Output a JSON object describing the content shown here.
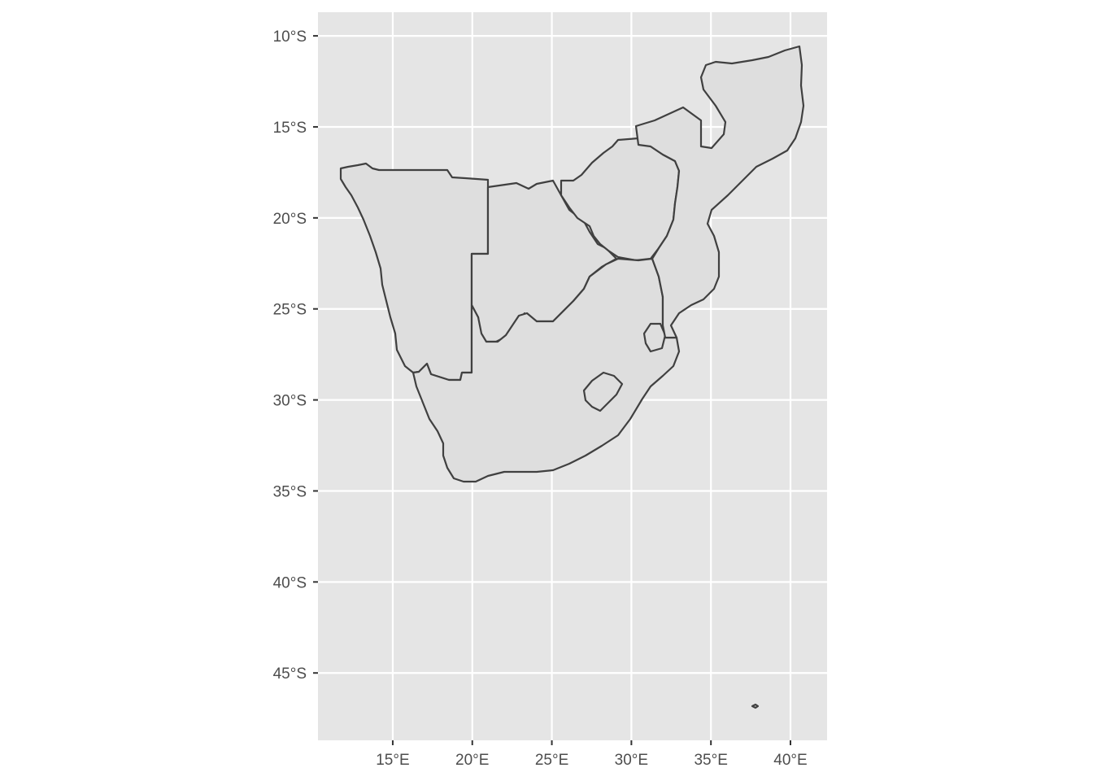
{
  "map": {
    "type": "choropleth-outline",
    "region": "Southern Africa",
    "panel_background": "#e5e5e5",
    "grid_color": "#ffffff",
    "land_fill": "#dedede",
    "border_color": "#404040",
    "grid": true,
    "x_axis": {
      "range": [
        10.3,
        42.3
      ],
      "ticks": [
        {
          "value": 15,
          "label": "15°E"
        },
        {
          "value": 20,
          "label": "20°E"
        },
        {
          "value": 25,
          "label": "25°E"
        },
        {
          "value": 30,
          "label": "30°E"
        },
        {
          "value": 35,
          "label": "35°E"
        },
        {
          "value": 40,
          "label": "40°E"
        }
      ]
    },
    "y_axis": {
      "range": [
        -48.7,
        -8.7
      ],
      "ticks": [
        {
          "value": -10,
          "label": "10°S"
        },
        {
          "value": -15,
          "label": "15°S"
        },
        {
          "value": -20,
          "label": "20°S"
        },
        {
          "value": -25,
          "label": "25°S"
        },
        {
          "value": -30,
          "label": "30°S"
        },
        {
          "value": -35,
          "label": "35°S"
        },
        {
          "value": -40,
          "label": "40°S"
        },
        {
          "value": -45,
          "label": "45°S"
        }
      ]
    }
  }
}
